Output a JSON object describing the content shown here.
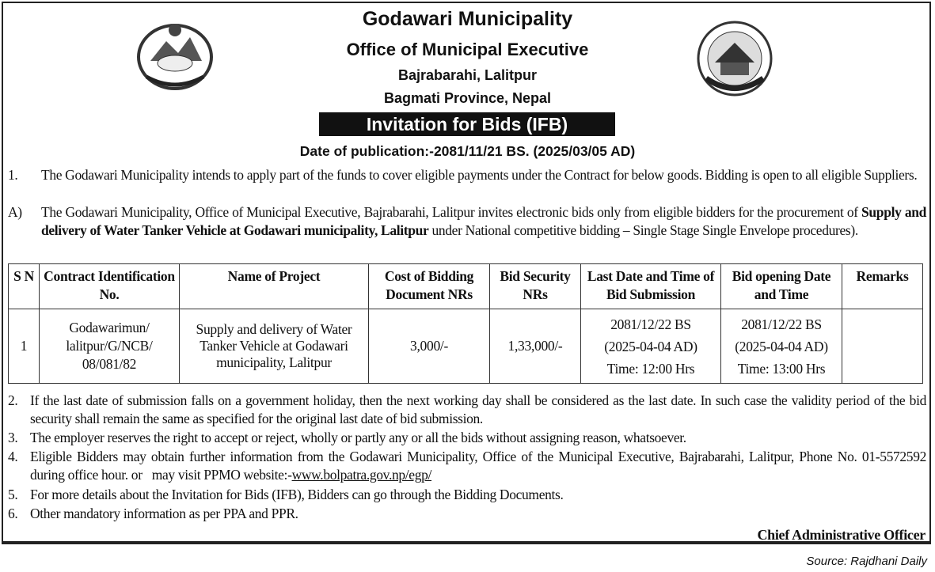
{
  "header": {
    "org": "Godawari Municipality",
    "office": "Office of Municipal Executive",
    "address": "Bajrabarahi, Lalitpur",
    "province": "Bagmati Province, Nepal",
    "title": "Invitation for Bids (IFB)",
    "publication_date": "Date of publication:-2081/11/21 BS. (2025/03/05 AD)"
  },
  "logos": {
    "left": "nepal-government-emblem",
    "right": "godawari-municipality-emblem"
  },
  "paragraphs": [
    {
      "num": "1.",
      "text": "The Godawari Municipality intends to apply part of the funds to cover eligible payments under the Contract for below goods. Bidding is open to all eligible Suppliers."
    },
    {
      "num": "A)",
      "text_before": "The Godawari Municipality, Office of Municipal Executive, Bajrabarahi, Lalitpur invites electronic bids only from eligible bidders for the procurement of ",
      "text_bold": "Supply and delivery of Water Tanker Vehicle at Godawari municipality, Lalitpur",
      "text_after": " under National competitive bidding – Single Stage Single Envelope procedures)."
    }
  ],
  "table": {
    "headers": [
      "S N",
      "Contract Identification No.",
      "Name of Project",
      "Cost of Bidding Document NRs",
      "Bid Security NRs",
      "Last Date and Time of Bid Submission",
      "Bid opening Date and Time",
      "Remarks"
    ],
    "rows": [
      {
        "sn": "1",
        "contract_id": [
          "Godawarimun/",
          "lalitpur/G/NCB/",
          "08/081/82"
        ],
        "project": "Supply and delivery of Water Tanker Vehicle at Godawari municipality, Lalitpur",
        "cost": "3,000/-",
        "security": "1,33,000/-",
        "submission": [
          "2081/12/22 BS",
          "(2025-04-04 AD)",
          "Time: 12:00 Hrs"
        ],
        "opening": [
          "2081/12/22 BS",
          "(2025-04-04 AD)",
          "Time: 13:00 Hrs"
        ],
        "remarks": ""
      }
    ]
  },
  "notes": [
    {
      "num": "2.",
      "text": "If the last date of submission falls on a government holiday, then the next working day shall be considered as the last date. In such case the validity period of the bid security shall remain the same as specified for the original last date of bid submission."
    },
    {
      "num": "3.",
      "text": "The employer reserves the right to accept or reject, wholly or partly any or all the bids without assigning reason, whatsoever."
    },
    {
      "num": "4.",
      "text": "Eligible Bidders may obtain further information from the Godawari Municipality, Office of the Municipal Executive, Bajrabarahi, Lalitpur, Phone No. 01-5572592 during office hour. or   may visit PPMO website:-",
      "link": "www.bolpatra.gov.np/egp/"
    },
    {
      "num": "5.",
      "text": "For more details about the Invitation for Bids (IFB), Bidders can go through the Bidding Documents."
    },
    {
      "num": "6.",
      "text": "Other mandatory information as per PPA and PPR."
    }
  ],
  "signatory": "Chief Administrative Officer",
  "source": "Source: Rajdhani Daily"
}
